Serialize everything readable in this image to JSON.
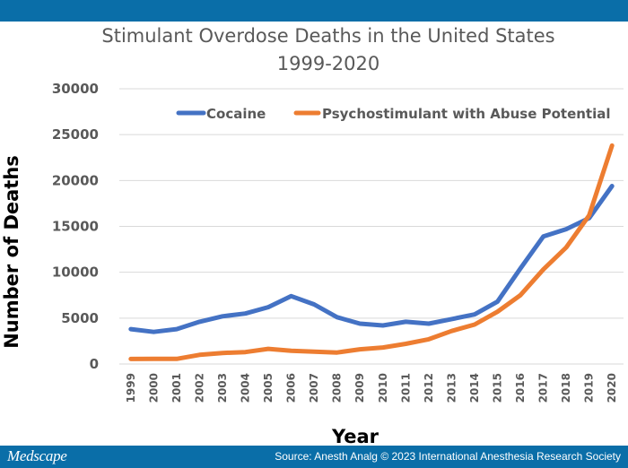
{
  "brand": "Medscape",
  "source": "Source: Anesth Analg © 2023 International Anesthesia Research Society",
  "chart_data": {
    "type": "line",
    "title": "Stimulant Overdose Deaths in the United States",
    "subtitle": "1999-2020",
    "xlabel": "Year",
    "ylabel": "Number of Deaths",
    "ylim": [
      0,
      30000
    ],
    "yticks": [
      "0",
      "5000",
      "10000",
      "15000",
      "20000",
      "25000",
      "30000"
    ],
    "x": [
      "1999",
      "2000",
      "2001",
      "2002",
      "2003",
      "2004",
      "2005",
      "2006",
      "2007",
      "2008",
      "2009",
      "2010",
      "2011",
      "2012",
      "2013",
      "2014",
      "2015",
      "2016",
      "2017",
      "2018",
      "2019",
      "2020"
    ],
    "grid": true,
    "legend": "top-right",
    "series": [
      {
        "name": "Cocaine",
        "color": "#4472c4",
        "values": [
          3800,
          3500,
          3800,
          4600,
          5200,
          5500,
          6200,
          7400,
          6500,
          5100,
          4400,
          4200,
          4600,
          4400,
          4900,
          5400,
          6800,
          10400,
          13900,
          14700,
          15900,
          19400
        ]
      },
      {
        "name": "Psychostimulant with Abuse Potential",
        "color": "#ed7d31",
        "values": [
          550,
          560,
          560,
          1000,
          1200,
          1300,
          1650,
          1450,
          1350,
          1250,
          1600,
          1800,
          2200,
          2700,
          3600,
          4300,
          5700,
          7500,
          10300,
          12700,
          16200,
          23800
        ]
      }
    ]
  }
}
